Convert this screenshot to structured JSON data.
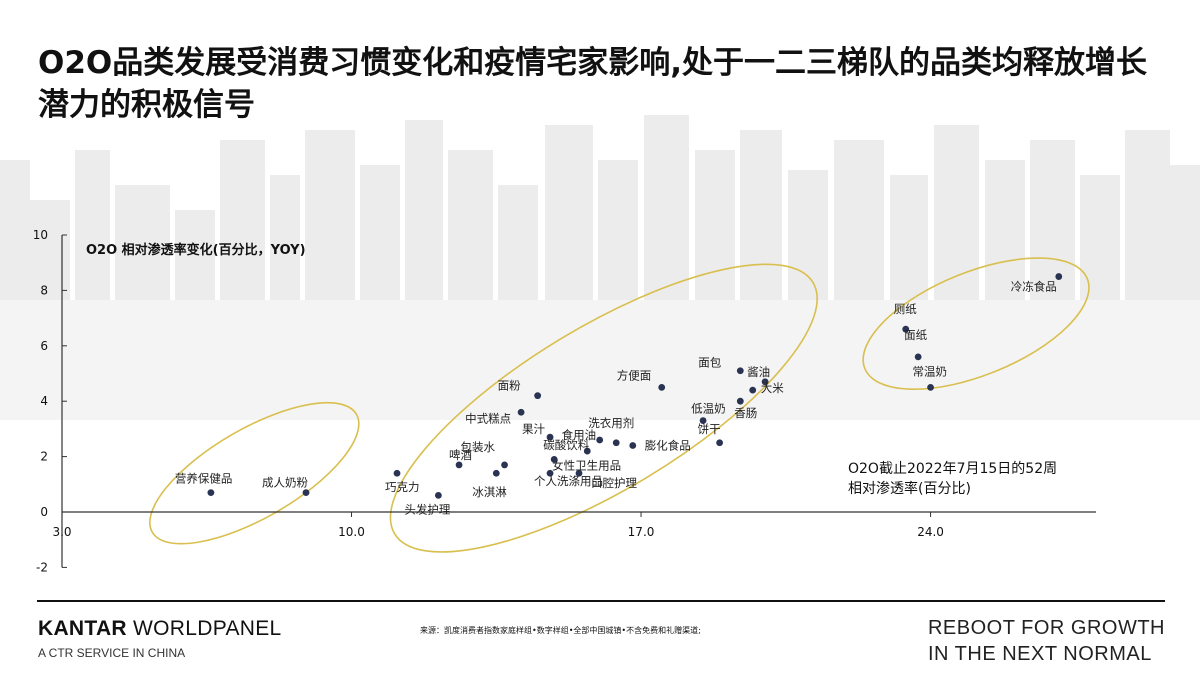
{
  "title": "O2O品类发展受消费习惯变化和疫情宅家影响,处于一二三梯队的品类均释放增长潜力的积极信号",
  "chart_data": {
    "type": "scatter",
    "ylabel": "O2O 相对渗透率变化(百分比，YOY)",
    "xlabel": "O2O截止2022年7月15日的52周\n相对渗透率(百分比)",
    "xlim": [
      3,
      28
    ],
    "ylim": [
      -2,
      10
    ],
    "xticks": [
      3.0,
      10.0,
      17.0,
      24.0
    ],
    "xtick_labels": [
      "3.0",
      "10.0",
      "17.0",
      "24.0"
    ],
    "yticks": [
      -2,
      2,
      4,
      6,
      8,
      10
    ],
    "ytick_labels": [
      "-2",
      "2",
      "4",
      "6",
      "8",
      "10"
    ],
    "y_zero_label": "0",
    "grid": false,
    "marker_color": "#2a3352",
    "group_ellipse_color": "#d9bf4e",
    "points": [
      {
        "label": "营养保健品",
        "x": 6.6,
        "y": 0.7
      },
      {
        "label": "成人奶粉",
        "x": 8.9,
        "y": 0.7
      },
      {
        "label": "巧克力",
        "x": 11.1,
        "y": 1.4
      },
      {
        "label": "头发护理",
        "x": 12.1,
        "y": 0.6
      },
      {
        "label": "啤酒",
        "x": 12.6,
        "y": 1.7
      },
      {
        "label": "冰淇淋",
        "x": 13.5,
        "y": 1.4
      },
      {
        "label": "包装水",
        "x": 13.7,
        "y": 1.7
      },
      {
        "label": "个人洗涤用品",
        "x": 14.8,
        "y": 1.4
      },
      {
        "label": "面粉",
        "x": 14.5,
        "y": 4.2
      },
      {
        "label": "中式糕点",
        "x": 14.1,
        "y": 3.6
      },
      {
        "label": "果汁",
        "x": 14.8,
        "y": 2.7
      },
      {
        "label": "女性卫生用品",
        "x": 14.9,
        "y": 1.9
      },
      {
        "label": "口腔护理",
        "x": 15.5,
        "y": 1.4
      },
      {
        "label": "食用油",
        "x": 16.0,
        "y": 2.6
      },
      {
        "label": "碳酸饮料",
        "x": 15.7,
        "y": 2.2
      },
      {
        "label": "洗衣用剂",
        "x": 16.4,
        "y": 2.5
      },
      {
        "label": "膨化食品",
        "x": 16.8,
        "y": 2.4
      },
      {
        "label": "方便面",
        "x": 17.5,
        "y": 4.5
      },
      {
        "label": "低温奶",
        "x": 18.5,
        "y": 3.3
      },
      {
        "label": "饼干",
        "x": 18.9,
        "y": 2.5
      },
      {
        "label": "面包",
        "x": 19.4,
        "y": 5.1
      },
      {
        "label": "香肠",
        "x": 19.4,
        "y": 4.0
      },
      {
        "label": "酱油",
        "x": 20.0,
        "y": 4.7
      },
      {
        "label": "大米",
        "x": 19.7,
        "y": 4.4
      },
      {
        "label": "厕纸",
        "x": 23.4,
        "y": 6.6
      },
      {
        "label": "面纸",
        "x": 23.7,
        "y": 5.6
      },
      {
        "label": "常温奶",
        "x": 24.0,
        "y": 4.5
      },
      {
        "label": "冷冻食品",
        "x": 27.1,
        "y": 8.5
      }
    ]
  },
  "footer": {
    "brand_bold": "KANTAR",
    "brand_rest": " WORLDPANEL",
    "brand_sub": "A CTR SERVICE IN CHINA",
    "source": "来源：凯度消费者指数家庭样组•数字样组•全部中国城镇•不含免费和礼赠渠道;",
    "tagline_line1": "REBOOT FOR GROWTH",
    "tagline_line2": "IN THE NEXT NORMAL"
  }
}
